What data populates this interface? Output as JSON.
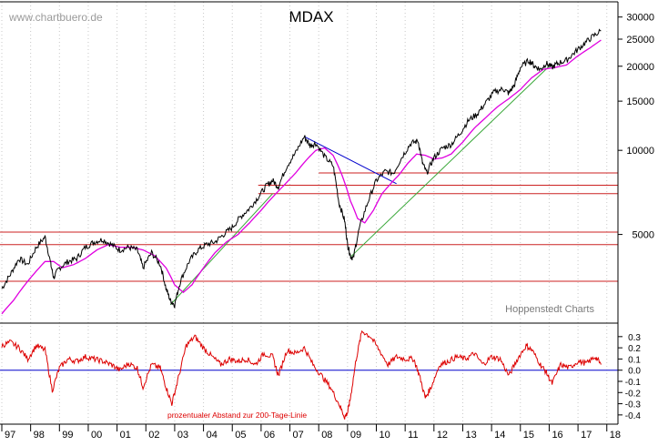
{
  "chart_data": [
    {
      "type": "line",
      "title": "MDAX",
      "watermark": "www.chartbuero.de",
      "source_note": "Hoppenstedt Charts",
      "y_scale": "log",
      "ylim": [
        2500,
        33000
      ],
      "xlim": [
        1997.0,
        2017.85
      ],
      "y_ticks": [
        {
          "value": 5000,
          "label": "5000"
        },
        {
          "value": 10000,
          "label": "10000"
        },
        {
          "value": 15000,
          "label": "15000"
        },
        {
          "value": 20000,
          "label": "20000"
        },
        {
          "value": 25000,
          "label": "25000"
        },
        {
          "value": 30000,
          "label": "30000"
        }
      ],
      "x_ticks": [
        {
          "value": 1997,
          "label": "97"
        },
        {
          "value": 1998,
          "label": "98"
        },
        {
          "value": 1999,
          "label": "99"
        },
        {
          "value": 2000,
          "label": "00"
        },
        {
          "value": 2001,
          "label": "01"
        },
        {
          "value": 2002,
          "label": "02"
        },
        {
          "value": 2003,
          "label": "03"
        },
        {
          "value": 2004,
          "label": "04"
        },
        {
          "value": 2005,
          "label": "05"
        },
        {
          "value": 2006,
          "label": "06"
        },
        {
          "value": 2007,
          "label": "07"
        },
        {
          "value": 2008,
          "label": "08"
        },
        {
          "value": 2009,
          "label": "09"
        },
        {
          "value": 2010,
          "label": "10"
        },
        {
          "value": 2011,
          "label": "11"
        },
        {
          "value": 2012,
          "label": "12"
        },
        {
          "value": 2013,
          "label": "13"
        },
        {
          "value": 2014,
          "label": "14"
        },
        {
          "value": 2015,
          "label": "15"
        },
        {
          "value": 2016,
          "label": "16"
        },
        {
          "value": 2017,
          "label": "17"
        },
        {
          "value": 2018,
          "label": "18"
        }
      ],
      "grid": "vertical dotted",
      "colors": {
        "price": "#000000",
        "ma200": "#e000e0",
        "support": "#3aa83a",
        "resistance": "#0000cc",
        "levels": "#cc2222"
      },
      "series": [
        {
          "key": "price",
          "x": [
            1997.0,
            1997.3,
            1997.6,
            1997.9,
            1998.2,
            1998.5,
            1998.7,
            1998.8,
            1999.0,
            1999.3,
            1999.6,
            1999.9,
            2000.2,
            2000.5,
            2000.8,
            2001.1,
            2001.4,
            2001.7,
            2001.9,
            2002.2,
            2002.5,
            2002.7,
            2002.85,
            2003.0,
            2003.2,
            2003.5,
            2003.8,
            2004.1,
            2004.4,
            2004.7,
            2005.0,
            2005.3,
            2005.6,
            2005.9,
            2006.2,
            2006.4,
            2006.6,
            2006.9,
            2007.2,
            2007.5,
            2007.7,
            2007.9,
            2008.2,
            2008.5,
            2008.7,
            2008.9,
            2009.0,
            2009.1,
            2009.2,
            2009.4,
            2009.7,
            2010.0,
            2010.3,
            2010.6,
            2010.9,
            2011.2,
            2011.45,
            2011.6,
            2011.75,
            2012.0,
            2012.3,
            2012.6,
            2012.9,
            2013.2,
            2013.5,
            2013.8,
            2014.1,
            2014.4,
            2014.6,
            2014.8,
            2015.0,
            2015.3,
            2015.5,
            2015.7,
            2015.9,
            2016.1,
            2016.3,
            2016.6,
            2016.9,
            2017.2,
            2017.5,
            2017.8
          ],
          "y": [
            3200,
            3600,
            4100,
            3900,
            4500,
            4900,
            3900,
            3500,
            3800,
            4000,
            4100,
            4500,
            4700,
            4800,
            4600,
            4400,
            4500,
            4400,
            3800,
            4300,
            3900,
            3200,
            2900,
            2800,
            3400,
            4000,
            4400,
            4600,
            4700,
            5000,
            5300,
            5800,
            6200,
            6800,
            7500,
            7800,
            7400,
            8800,
            9800,
            11200,
            10400,
            10600,
            9500,
            8800,
            6500,
            5600,
            4600,
            4200,
            4100,
            5200,
            6500,
            7800,
            8400,
            8300,
            9500,
            10600,
            10800,
            9000,
            8300,
            9400,
            10200,
            10500,
            11500,
            12800,
            13500,
            14800,
            16200,
            16600,
            16000,
            17200,
            19800,
            21000,
            20000,
            19500,
            20500,
            19800,
            20500,
            21000,
            22500,
            24000,
            25500,
            26800
          ]
        },
        {
          "key": "ma200",
          "x": [
            1997.0,
            1997.4,
            1997.8,
            1998.2,
            1998.5,
            1998.8,
            1999.1,
            1999.5,
            1999.9,
            2000.3,
            2000.7,
            2001.1,
            2001.5,
            2001.9,
            2002.3,
            2002.7,
            2003.0,
            2003.3,
            2003.6,
            2004.0,
            2004.4,
            2004.8,
            2005.2,
            2005.6,
            2006.0,
            2006.4,
            2006.8,
            2007.2,
            2007.6,
            2007.9,
            2008.2,
            2008.5,
            2008.8,
            2009.1,
            2009.35,
            2009.6,
            2009.9,
            2010.2,
            2010.5,
            2010.8,
            2011.1,
            2011.4,
            2011.7,
            2012.0,
            2012.3,
            2012.6,
            2013.0,
            2013.4,
            2013.8,
            2014.2,
            2014.6,
            2015.0,
            2015.4,
            2015.8,
            2016.2,
            2016.6,
            2017.0,
            2017.4,
            2017.8
          ],
          "y": [
            2600,
            2900,
            3300,
            3700,
            4000,
            4000,
            3800,
            3900,
            4100,
            4400,
            4600,
            4500,
            4500,
            4400,
            4200,
            3800,
            3300,
            3100,
            3300,
            3800,
            4300,
            4700,
            5000,
            5500,
            6100,
            6800,
            7500,
            8300,
            9300,
            10000,
            10200,
            9600,
            8200,
            6600,
            5700,
            5500,
            6100,
            7000,
            7600,
            8200,
            9000,
            9700,
            9600,
            9300,
            9400,
            9700,
            10700,
            12000,
            13100,
            14300,
            15300,
            16500,
            18200,
            19500,
            19800,
            20200,
            21800,
            23200,
            24800
          ]
        }
      ],
      "support_lines": [
        {
          "name": "support-1",
          "x": [
            2002.85,
            2006.4
          ],
          "y": [
            2800,
            7000
          ]
        },
        {
          "name": "support-2",
          "x": [
            2009.1,
            2016.0
          ],
          "y": [
            4150,
            20000
          ]
        }
      ],
      "resistance_lines": [
        {
          "name": "resistance-1",
          "x": [
            2007.5,
            2010.7
          ],
          "y": [
            11200,
            7600
          ]
        }
      ],
      "horizontal_levels": [
        3400,
        4600,
        5100,
        7000,
        7500,
        8300
      ]
    },
    {
      "type": "line",
      "caption": "prozentualer Abstand zur 200-Tage-Linie",
      "ylim": [
        -0.45,
        0.38
      ],
      "xlim": [
        1997.0,
        2017.85
      ],
      "y_ticks": [
        {
          "value": 0.3,
          "label": "0.3"
        },
        {
          "value": 0.2,
          "label": "0.2"
        },
        {
          "value": 0.1,
          "label": "0.1"
        },
        {
          "value": 0.0,
          "label": "0.0"
        },
        {
          "value": -0.1,
          "label": "-0.1"
        },
        {
          "value": -0.2,
          "label": "-0.2"
        },
        {
          "value": -0.3,
          "label": "-0.3"
        },
        {
          "value": -0.4,
          "label": "-0.4"
        }
      ],
      "zero_line_color": "#0000cc",
      "series": [
        {
          "key": "deviation",
          "color": "#dd0000",
          "x": [
            1997.0,
            1997.3,
            1997.6,
            1997.9,
            1998.2,
            1998.5,
            1998.75,
            1999.0,
            1999.3,
            1999.6,
            1999.9,
            2000.2,
            2000.5,
            2000.8,
            2001.1,
            2001.4,
            2001.7,
            2001.9,
            2002.2,
            2002.5,
            2002.7,
            2002.9,
            2003.1,
            2003.4,
            2003.7,
            2004.0,
            2004.3,
            2004.6,
            2004.9,
            2005.2,
            2005.5,
            2005.8,
            2006.1,
            2006.4,
            2006.6,
            2006.9,
            2007.2,
            2007.5,
            2007.8,
            2008.1,
            2008.4,
            2008.7,
            2008.9,
            2009.0,
            2009.1,
            2009.3,
            2009.5,
            2009.8,
            2010.1,
            2010.4,
            2010.7,
            2011.0,
            2011.3,
            2011.5,
            2011.7,
            2011.9,
            2012.2,
            2012.5,
            2012.8,
            2013.1,
            2013.4,
            2013.7,
            2014.0,
            2014.3,
            2014.6,
            2014.9,
            2015.2,
            2015.4,
            2015.7,
            2015.9,
            2016.1,
            2016.4,
            2016.7,
            2017.0,
            2017.3,
            2017.6,
            2017.8
          ],
          "y": [
            0.22,
            0.25,
            0.2,
            0.1,
            0.22,
            0.18,
            -0.18,
            0.02,
            0.1,
            0.08,
            0.12,
            0.1,
            0.08,
            0.05,
            0.0,
            0.06,
            0.02,
            -0.15,
            0.05,
            0.02,
            -0.15,
            -0.3,
            -0.1,
            0.22,
            0.3,
            0.2,
            0.12,
            0.05,
            0.1,
            0.08,
            0.1,
            0.05,
            0.15,
            0.12,
            -0.05,
            0.18,
            0.15,
            0.2,
            0.05,
            -0.05,
            -0.15,
            -0.3,
            -0.42,
            -0.38,
            -0.25,
            0.1,
            0.35,
            0.3,
            0.18,
            0.05,
            0.12,
            0.1,
            0.1,
            -0.05,
            -0.25,
            -0.15,
            0.05,
            0.08,
            0.12,
            0.1,
            0.15,
            0.05,
            0.12,
            0.1,
            -0.05,
            0.1,
            0.22,
            0.18,
            0.05,
            -0.02,
            -0.12,
            0.05,
            0.02,
            0.08,
            0.06,
            0.12,
            0.05
          ]
        }
      ]
    }
  ]
}
